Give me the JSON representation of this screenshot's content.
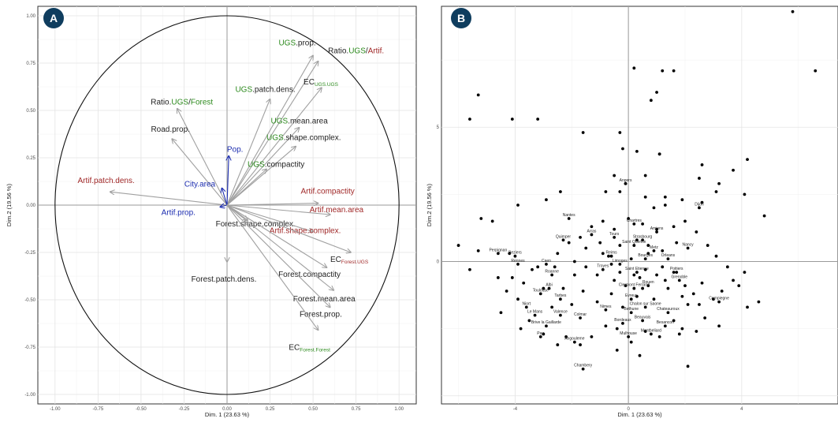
{
  "colors": {
    "green": "#2e8b1f",
    "red": "#a02828",
    "blue": "#1c2db0",
    "black": "#222222",
    "arrow_gray": "#a0a0a0",
    "badge": "#0f3d5e"
  },
  "chart_data": [
    {
      "type": "scatter",
      "variant": "pca-correlation-circle",
      "panel_label": "A",
      "xlabel": "Dim. 1 (23.63 %)",
      "ylabel": "Dim.2 (19.56 %)",
      "xlim": [
        -1.1,
        1.1
      ],
      "ylim": [
        -1.05,
        1.05
      ],
      "x_ticks": [
        "-1.00",
        "-0.75",
        "-0.50",
        "-0.25",
        "0.00",
        "0.25",
        "0.50",
        "0.75",
        "1.00"
      ],
      "y_ticks": [
        "-1.00",
        "-0.75",
        "-0.50",
        "-0.25",
        "0.00",
        "0.25",
        "0.50",
        "0.75",
        "1.00"
      ],
      "grid": true,
      "unit_circle": true,
      "variables": [
        {
          "id": "ugs-prop",
          "label": [
            {
              "t": "UGS",
              "c": "green"
            },
            {
              "t": ".prop.",
              "c": "black"
            }
          ],
          "x": 0.5,
          "y": 0.79
        },
        {
          "id": "ratio-ugs-artif",
          "label": [
            {
              "t": "Ratio.",
              "c": "black"
            },
            {
              "t": "UGS",
              "c": "green"
            },
            {
              "t": "/",
              "c": "black"
            },
            {
              "t": "Artif.",
              "c": "red"
            }
          ],
          "x": 0.53,
          "y": 0.76
        },
        {
          "id": "ec-ugs-ugs",
          "label": [
            {
              "t": "EC",
              "c": "black"
            },
            {
              "t": "UGS.UGS",
              "c": "green",
              "sub": true
            }
          ],
          "x": 0.55,
          "y": 0.62
        },
        {
          "id": "ugs-patch-dens",
          "label": [
            {
              "t": "UGS",
              "c": "green"
            },
            {
              "t": ".patch.dens.",
              "c": "black"
            }
          ],
          "x": 0.25,
          "y": 0.56
        },
        {
          "id": "ugs-mean-area",
          "label": [
            {
              "t": "UGS",
              "c": "green"
            },
            {
              "t": ".mean.area",
              "c": "black"
            }
          ],
          "x": 0.42,
          "y": 0.41
        },
        {
          "id": "ugs-shape-complex",
          "label": [
            {
              "t": "UGS",
              "c": "green"
            },
            {
              "t": ".shape.complex.",
              "c": "black"
            }
          ],
          "x": 0.4,
          "y": 0.31
        },
        {
          "id": "ratio-ugs-forest",
          "label": [
            {
              "t": "Ratio.",
              "c": "black"
            },
            {
              "t": "UGS",
              "c": "green"
            },
            {
              "t": "/",
              "c": "black"
            },
            {
              "t": "Forest",
              "c": "green"
            }
          ],
          "x": -0.29,
          "y": 0.51
        },
        {
          "id": "road-prop",
          "label": [
            {
              "t": "Road.prop.",
              "c": "black"
            }
          ],
          "x": -0.32,
          "y": 0.35
        },
        {
          "id": "pop",
          "label": [
            {
              "t": "Pop.",
              "c": "blue"
            }
          ],
          "x": 0.01,
          "y": 0.26
        },
        {
          "id": "city-area",
          "label": [
            {
              "t": "City.area",
              "c": "blue"
            }
          ],
          "x": -0.03,
          "y": 0.09
        },
        {
          "id": "artif-patch-dens",
          "label": [
            {
              "t": "Artif.patch.dens.",
              "c": "red"
            }
          ],
          "x": -0.68,
          "y": 0.07
        },
        {
          "id": "ugs-compactity",
          "label": [
            {
              "t": "UGS",
              "c": "green"
            },
            {
              "t": ".compactity",
              "c": "black"
            }
          ],
          "x": 0.23,
          "y": 0.19
        },
        {
          "id": "artif-compactity",
          "label": [
            {
              "t": "Artif.compactity",
              "c": "red"
            }
          ],
          "x": 0.53,
          "y": 0.01
        },
        {
          "id": "artif-prop",
          "label": [
            {
              "t": "Artif.prop.",
              "c": "blue"
            }
          ],
          "x": -0.04,
          "y": -0.01
        },
        {
          "id": "artif-mean-area",
          "label": [
            {
              "t": "Artif.mean.area",
              "c": "red"
            }
          ],
          "x": 0.6,
          "y": -0.05
        },
        {
          "id": "forest-shape-complex",
          "label": [
            {
              "t": "Forest.shape.complex.",
              "c": "black"
            }
          ],
          "x": 0.12,
          "y": -0.08
        },
        {
          "id": "artif-shape-complex",
          "label": [
            {
              "t": "Artif.shape.complex.",
              "c": "red"
            }
          ],
          "x": 0.5,
          "y": -0.14
        },
        {
          "id": "ec-forest-ugs",
          "label": [
            {
              "t": "EC",
              "c": "black"
            },
            {
              "t": "Forest.UGS",
              "c": "red",
              "sub": true
            }
          ],
          "x": 0.72,
          "y": -0.25
        },
        {
          "id": "forest-patch-dens",
          "label": [
            {
              "t": "Forest.patch.dens.",
              "c": "black"
            }
          ],
          "x": 0.0,
          "y": -0.3
        },
        {
          "id": "forest-compactity",
          "label": [
            {
              "t": "Forest.compactity",
              "c": "black"
            }
          ],
          "x": 0.58,
          "y": -0.33
        },
        {
          "id": "forest-mean-area",
          "label": [
            {
              "t": "Forest.mean.area",
              "c": "black"
            }
          ],
          "x": 0.62,
          "y": -0.45
        },
        {
          "id": "forest-prop",
          "label": [
            {
              "t": "Forest.prop.",
              "c": "black"
            }
          ],
          "x": 0.6,
          "y": -0.54
        },
        {
          "id": "ec-forest-forest",
          "label": [
            {
              "t": "EC",
              "c": "black"
            },
            {
              "t": "Forest.Forest",
              "c": "green",
              "sub": true
            }
          ],
          "x": 0.53,
          "y": -0.66
        }
      ]
    },
    {
      "type": "scatter",
      "variant": "pca-individuals",
      "panel_label": "B",
      "xlabel": "Dim. 1 (23.63 %)",
      "ylabel": "Dim.2 (19.56 %)",
      "xlim": [
        -6.6,
        7.4
      ],
      "ylim": [
        -5.3,
        9.5
      ],
      "x_ticks": [
        -4,
        0,
        4
      ],
      "y_ticks": [
        0,
        5
      ],
      "grid": true,
      "labeled_points": [
        {
          "label": "Angers",
          "x": -0.1,
          "y": 2.9
        },
        {
          "label": "Chartres",
          "x": 0.2,
          "y": 1.4
        },
        {
          "label": "Nantes",
          "x": -2.1,
          "y": 1.6
        },
        {
          "label": "Dijon",
          "x": 2.5,
          "y": 2.0
        },
        {
          "label": "Amiens",
          "x": 1.0,
          "y": 1.1
        },
        {
          "label": "Tours",
          "x": -0.5,
          "y": 0.9
        },
        {
          "label": "Arras",
          "x": -1.3,
          "y": 1.0
        },
        {
          "label": "Quimper",
          "x": -2.3,
          "y": 0.8
        },
        {
          "label": "Strasbourg",
          "x": 0.5,
          "y": 0.8
        },
        {
          "label": "Saint Quentin",
          "x": 0.2,
          "y": 0.6
        },
        {
          "label": "Nancy",
          "x": 2.1,
          "y": 0.5
        },
        {
          "label": "Metz",
          "x": 0.9,
          "y": 0.4
        },
        {
          "label": "Perpignan",
          "x": -4.6,
          "y": 0.3
        },
        {
          "label": "Beziers",
          "x": -4.0,
          "y": 0.2
        },
        {
          "label": "Reims",
          "x": -0.6,
          "y": 0.2
        },
        {
          "label": "Bourges",
          "x": 0.6,
          "y": 0.1
        },
        {
          "label": "Orleans",
          "x": 1.4,
          "y": 0.1
        },
        {
          "label": "Rennes",
          "x": -3.9,
          "y": -0.1
        },
        {
          "label": "Caen",
          "x": -2.9,
          "y": -0.1
        },
        {
          "label": "Limoges",
          "x": -0.3,
          "y": -0.1
        },
        {
          "label": "Troyes",
          "x": -0.9,
          "y": -0.3
        },
        {
          "label": "Poitiers",
          "x": 1.7,
          "y": -0.4
        },
        {
          "label": "Saint Etienne",
          "x": 0.3,
          "y": -0.4
        },
        {
          "label": "Roanne",
          "x": -2.7,
          "y": -0.5
        },
        {
          "label": "Grenoble",
          "x": 1.8,
          "y": -0.7
        },
        {
          "label": "Rouen",
          "x": 0.7,
          "y": -0.9
        },
        {
          "label": "Clermont Ferrand",
          "x": 0.2,
          "y": -1.0
        },
        {
          "label": "Albi",
          "x": -2.8,
          "y": -1.0
        },
        {
          "label": "Toulouse",
          "x": -3.1,
          "y": -1.2
        },
        {
          "label": "Tarbes",
          "x": -2.4,
          "y": -1.4
        },
        {
          "label": "Evreux",
          "x": 0.1,
          "y": -1.4
        },
        {
          "label": "Compiegne",
          "x": 3.2,
          "y": -1.5
        },
        {
          "label": "Niort",
          "x": -3.6,
          "y": -1.7
        },
        {
          "label": "Chalon sur Saone",
          "x": 0.6,
          "y": -1.7
        },
        {
          "label": "Nimes",
          "x": -0.8,
          "y": -1.8
        },
        {
          "label": "Bethune",
          "x": 0.1,
          "y": -1.9
        },
        {
          "label": "Chateauroux",
          "x": 1.4,
          "y": -1.9
        },
        {
          "label": "Le Mans",
          "x": -3.3,
          "y": -2.0
        },
        {
          "label": "Valence",
          "x": -2.4,
          "y": -2.0
        },
        {
          "label": "Colmar",
          "x": -1.7,
          "y": -2.1
        },
        {
          "label": "Beauvais",
          "x": 0.5,
          "y": -2.2
        },
        {
          "label": "Bordeaux",
          "x": -0.2,
          "y": -2.3
        },
        {
          "label": "Besancon",
          "x": 1.3,
          "y": -2.4
        },
        {
          "label": "Brive la Gaillarde",
          "x": -2.9,
          "y": -2.4
        },
        {
          "label": "Montbeliard",
          "x": 0.8,
          "y": -2.7
        },
        {
          "label": "Pau",
          "x": -3.1,
          "y": -2.8
        },
        {
          "label": "Mulhouse",
          "x": 0.0,
          "y": -2.8
        },
        {
          "label": "Angouleme",
          "x": -1.9,
          "y": -3.0
        },
        {
          "label": "Chambery",
          "x": -1.6,
          "y": -4.0
        }
      ],
      "points": [
        [
          5.8,
          9.3
        ],
        [
          6.6,
          7.1
        ],
        [
          -5.3,
          6.2
        ],
        [
          -5.6,
          5.3
        ],
        [
          -4.1,
          5.3
        ],
        [
          -3.2,
          5.3
        ],
        [
          -1.6,
          4.8
        ],
        [
          -0.3,
          4.8
        ],
        [
          -0.2,
          4.2
        ],
        [
          0.3,
          4.1
        ],
        [
          1.1,
          4.0
        ],
        [
          0.2,
          7.2
        ],
        [
          1.2,
          7.1
        ],
        [
          1.6,
          7.1
        ],
        [
          1.0,
          6.3
        ],
        [
          0.8,
          6.0
        ],
        [
          2.6,
          3.6
        ],
        [
          4.2,
          3.8
        ],
        [
          3.7,
          3.4
        ],
        [
          1.1,
          4.0
        ],
        [
          -0.5,
          3.2
        ],
        [
          0.6,
          3.2
        ],
        [
          -0.1,
          2.9
        ],
        [
          1.3,
          2.4
        ],
        [
          2.5,
          3.1
        ],
        [
          3.2,
          2.9
        ],
        [
          3.1,
          2.6
        ],
        [
          4.1,
          2.5
        ],
        [
          4.8,
          1.7
        ],
        [
          2.6,
          2.2
        ],
        [
          1.9,
          2.3
        ],
        [
          1.3,
          2.1
        ],
        [
          0.9,
          2.0
        ],
        [
          0.6,
          2.4
        ],
        [
          -0.3,
          2.6
        ],
        [
          -0.8,
          2.6
        ],
        [
          -2.4,
          2.6
        ],
        [
          -2.9,
          2.3
        ],
        [
          -3.9,
          2.1
        ],
        [
          -5.2,
          1.6
        ],
        [
          -4.8,
          1.5
        ],
        [
          -6.0,
          0.6
        ],
        [
          -5.3,
          0.4
        ],
        [
          -4.2,
          0.3
        ],
        [
          -5.6,
          -0.3
        ],
        [
          -4.1,
          -0.6
        ],
        [
          -3.4,
          -0.3
        ],
        [
          -3.0,
          -1.0
        ],
        [
          -2.6,
          -0.2
        ],
        [
          -1.9,
          0.0
        ],
        [
          -1.5,
          -0.2
        ],
        [
          -1.1,
          -0.5
        ],
        [
          -0.9,
          0.3
        ],
        [
          -0.7,
          0.2
        ],
        [
          -0.5,
          -0.7
        ],
        [
          -0.3,
          -0.4
        ],
        [
          0.1,
          0.1
        ],
        [
          0.2,
          -0.5
        ],
        [
          0.4,
          -0.6
        ],
        [
          0.6,
          -0.3
        ],
        [
          1.0,
          -0.5
        ],
        [
          1.3,
          -0.7
        ],
        [
          1.6,
          -0.4
        ],
        [
          2.0,
          -0.9
        ],
        [
          2.3,
          -1.2
        ],
        [
          2.6,
          -0.8
        ],
        [
          3.0,
          -1.4
        ],
        [
          3.3,
          -1.1
        ],
        [
          3.7,
          -0.7
        ],
        [
          4.1,
          -0.4
        ],
        [
          4.6,
          -1.5
        ],
        [
          3.2,
          -2.4
        ],
        [
          2.7,
          -2.1
        ],
        [
          2.1,
          -1.6
        ],
        [
          1.6,
          -2.2
        ],
        [
          1.1,
          -2.8
        ],
        [
          0.6,
          -2.6
        ],
        [
          0.1,
          -3.0
        ],
        [
          -0.4,
          -2.5
        ],
        [
          -0.8,
          -2.4
        ],
        [
          -1.3,
          -2.8
        ],
        [
          -1.7,
          -3.1
        ],
        [
          -2.2,
          -2.8
        ],
        [
          -2.5,
          -3.1
        ],
        [
          -3.0,
          -2.7
        ],
        [
          -3.5,
          -2.2
        ],
        [
          -3.9,
          -1.4
        ],
        [
          -4.3,
          -1.1
        ],
        [
          -4.6,
          -0.6
        ],
        [
          -3.7,
          -0.8
        ],
        [
          -3.2,
          -0.2
        ],
        [
          -2.5,
          0.3
        ],
        [
          -2.1,
          0.7
        ],
        [
          -1.7,
          0.9
        ],
        [
          -1.3,
          1.3
        ],
        [
          -0.9,
          1.5
        ],
        [
          -0.5,
          1.2
        ],
        [
          0.0,
          1.6
        ],
        [
          0.5,
          1.4
        ],
        [
          1.0,
          1.2
        ],
        [
          1.6,
          1.3
        ],
        [
          2.0,
          1.5
        ],
        [
          2.4,
          1.1
        ],
        [
          2.8,
          0.6
        ],
        [
          3.1,
          0.2
        ],
        [
          3.5,
          -0.2
        ],
        [
          3.9,
          -0.9
        ],
        [
          4.2,
          -1.7
        ],
        [
          -0.2,
          -1.7
        ],
        [
          0.3,
          -1.3
        ],
        [
          0.9,
          -1.4
        ],
        [
          1.4,
          -1.0
        ],
        [
          1.9,
          -1.3
        ],
        [
          2.5,
          -1.6
        ],
        [
          -0.6,
          -1.2
        ],
        [
          -1.1,
          -1.5
        ],
        [
          -1.6,
          -1.1
        ],
        [
          -2.0,
          -1.6
        ],
        [
          -2.7,
          -1.7
        ],
        [
          -0.3,
          0.6
        ],
        [
          0.3,
          0.8
        ],
        [
          0.7,
          0.6
        ],
        [
          1.2,
          0.4
        ],
        [
          1.7,
          0.7
        ],
        [
          -1.0,
          0.7
        ],
        [
          -1.5,
          0.5
        ],
        [
          2.1,
          -3.9
        ],
        [
          1.8,
          -2.7
        ],
        [
          2.4,
          -2.6
        ],
        [
          -0.4,
          -3.3
        ],
        [
          0.4,
          -3.5
        ],
        [
          -4.5,
          -1.9
        ],
        [
          -3.8,
          -2.5
        ],
        [
          1.9,
          -2.5
        ],
        [
          -0.1,
          -0.9
        ],
        [
          0.5,
          -1.0
        ],
        [
          -2.3,
          -1.0
        ],
        [
          -1.9,
          -0.5
        ],
        [
          1.2,
          -0.2
        ],
        [
          0.7,
          0.3
        ],
        [
          -0.6,
          -0.1
        ]
      ]
    }
  ]
}
